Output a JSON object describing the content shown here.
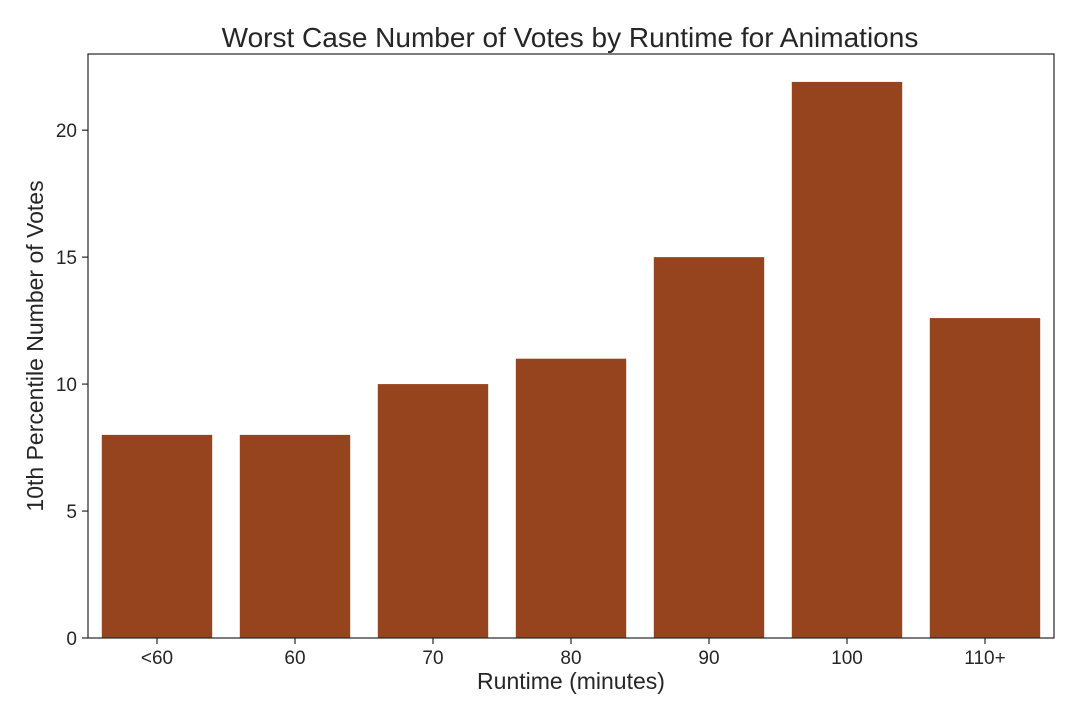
{
  "chart_data": {
    "type": "bar",
    "title": "Worst Case Number of Votes by Runtime for Animations",
    "xlabel": "Runtime (minutes)",
    "ylabel": "10th Percentile Number of Votes",
    "categories": [
      "<60",
      "60",
      "70",
      "80",
      "90",
      "100",
      "110+"
    ],
    "values": [
      8.0,
      8.0,
      10.0,
      11.0,
      15.0,
      21.9,
      12.6
    ],
    "ylim": [
      0,
      23
    ],
    "yticks": [
      0,
      5,
      10,
      15,
      20
    ],
    "bar_color": "#96441e",
    "grid": false,
    "legend": "none"
  }
}
